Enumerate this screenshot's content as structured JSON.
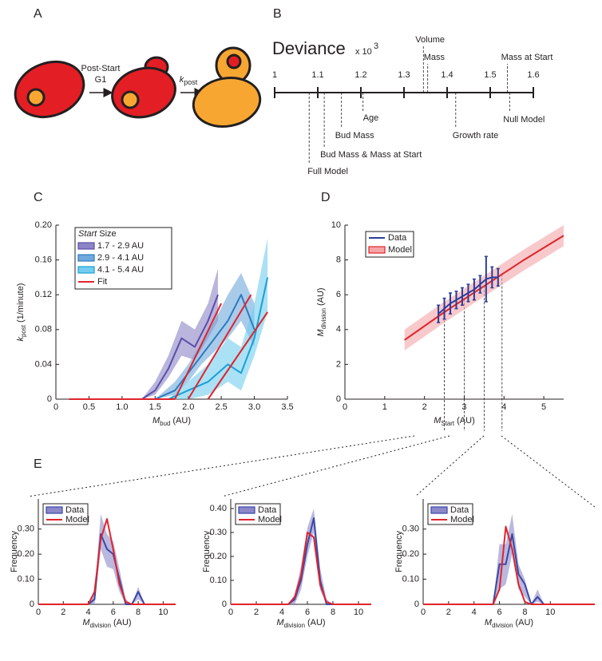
{
  "panels": [
    "A",
    "B",
    "C",
    "D",
    "E"
  ],
  "diagram": {
    "transition_1": [
      "Post-Start",
      "G1"
    ],
    "transition_2": {
      "symbol": "k",
      "subscript": "post"
    }
  },
  "chart_data": [
    {
      "type": "deviance",
      "title": "Deviance",
      "scale_label": "x 10",
      "scale_exponent": "3",
      "xlim": [
        1,
        1.6
      ],
      "xticks": [
        1,
        1.1,
        1.2,
        1.3,
        1.4,
        1.5,
        1.6
      ],
      "models": [
        {
          "name": "Full Model",
          "value": 1.08
        },
        {
          "name": "Bud Mass & Mass at Start",
          "value": 1.115
        },
        {
          "name": "Bud Mass",
          "value": 1.155
        },
        {
          "name": "Age",
          "value": 1.205
        },
        {
          "name": "Volume",
          "value": 1.345
        },
        {
          "name": "Mass",
          "value": 1.355
        },
        {
          "name": "Growth rate",
          "value": 1.42
        },
        {
          "name": "Null Model",
          "value": 1.545
        },
        {
          "name": "Mass at Start",
          "value": 1.54
        }
      ]
    },
    {
      "type": "line",
      "legend": "upper left",
      "xlabel": {
        "symbol": "M",
        "subscript": "bud",
        "unit": "(AU)"
      },
      "ylabel": {
        "symbol": "k",
        "subscript": "post",
        "unit": "(1/minute)"
      },
      "legend_title": {
        "italic": "Start",
        "text": "Size"
      },
      "xlim": [
        0,
        3.5
      ],
      "xticks": [
        0,
        0.5,
        {
          "value": 1,
          "label": "1.0"
        },
        1.5,
        {
          "value": 2,
          "label": "2.0"
        },
        2.5,
        {
          "value": 3,
          "label": "3.0"
        },
        3.5
      ],
      "ylim": [
        0,
        0.2
      ],
      "yticks": [
        0,
        0.04,
        0.08,
        0.12,
        0.16,
        {
          "value": 0.2,
          "label": "0.20"
        }
      ],
      "series": [
        {
          "name": "1.7 - 2.9 AU",
          "color": "#5a4fa8",
          "band_color": "#8b84c6",
          "x": [
            1.3,
            1.5,
            1.7,
            1.9,
            2.1,
            2.3,
            2.45
          ],
          "values": [
            0,
            0.01,
            0.035,
            0.07,
            0.06,
            0.09,
            0.12
          ],
          "lower": [
            0,
            0.005,
            0.025,
            0.05,
            0.045,
            0.07,
            0.09
          ],
          "upper": [
            0,
            0.02,
            0.05,
            0.09,
            0.08,
            0.11,
            0.15
          ]
        },
        {
          "name": "2.9 - 4.1 AU",
          "color": "#2b7bbf",
          "band_color": "#6fa8dc",
          "x": [
            1.5,
            1.8,
            2.0,
            2.2,
            2.4,
            2.6,
            2.8,
            3.0
          ],
          "values": [
            0,
            0.01,
            0.03,
            0.05,
            0.07,
            0.09,
            0.12,
            0.08
          ],
          "lower": [
            0,
            0.005,
            0.02,
            0.04,
            0.055,
            0.07,
            0.09,
            0.06
          ],
          "upper": [
            0,
            0.02,
            0.04,
            0.065,
            0.09,
            0.12,
            0.145,
            0.11
          ]
        },
        {
          "name": "4.1 - 5.4 AU",
          "color": "#1a9fd6",
          "band_color": "#72cdef",
          "x": [
            1.7,
            2.0,
            2.3,
            2.6,
            2.8,
            3.0,
            3.2
          ],
          "values": [
            0,
            0.01,
            0.02,
            0.04,
            0.03,
            0.07,
            0.14
          ],
          "lower": [
            0,
            0,
            0.005,
            0.02,
            0.01,
            0.05,
            0.1
          ],
          "upper": [
            0,
            0.02,
            0.04,
            0.07,
            0.06,
            0.11,
            0.185
          ]
        },
        {
          "name": "Fit",
          "color": "#e0242b",
          "x": [
            0.2,
            1.8,
            null,
            1.8,
            2.5,
            null,
            2.0,
            2.95,
            null,
            2.3,
            3.2
          ],
          "values": [
            0,
            0,
            null,
            0,
            0.11,
            null,
            0,
            0.12,
            null,
            0,
            0.1
          ]
        }
      ]
    },
    {
      "type": "line",
      "legend": "upper left",
      "xlabel": {
        "symbol": "M",
        "subscript": "Start",
        "unit": "(AU)"
      },
      "ylabel": {
        "symbol": "M",
        "subscript": "division",
        "unit": "(AU)"
      },
      "xlim": [
        0,
        5.5
      ],
      "xticks": [
        0,
        1,
        2,
        3,
        4,
        5
      ],
      "ylim": [
        0,
        10
      ],
      "yticks": [
        0,
        2,
        4,
        6,
        8,
        10
      ],
      "reference_x": [
        2.5,
        3,
        3.5,
        3.95
      ],
      "series": [
        {
          "name": "Model",
          "color": "#e0242b",
          "band_color": "#f4a5a8",
          "x": [
            1.5,
            2.5,
            3.5,
            4.5,
            5.5
          ],
          "values": [
            3.4,
            5.0,
            6.5,
            8.0,
            9.4
          ],
          "lower": [
            2.8,
            4.4,
            5.9,
            7.4,
            8.8
          ],
          "upper": [
            4.0,
            5.6,
            7.1,
            8.6,
            10.0
          ]
        },
        {
          "name": "Data",
          "color": "#2b3d9a",
          "x": [
            2.35,
            2.5,
            2.65,
            2.8,
            2.95,
            3.1,
            3.25,
            3.4,
            3.55,
            3.7,
            3.85
          ],
          "values": [
            4.9,
            5.2,
            5.5,
            5.7,
            5.9,
            6.1,
            6.3,
            6.6,
            6.9,
            7.0,
            7.0
          ],
          "errors": [
            0.5,
            0.6,
            0.6,
            0.5,
            0.5,
            0.5,
            0.6,
            0.5,
            1.3,
            0.6,
            0.5
          ]
        }
      ]
    },
    {
      "type": "line",
      "legend": "upper left",
      "xlabel": {
        "symbol": "M",
        "subscript": "division",
        "unit": "(AU)"
      },
      "ylabel": {
        "text": "Frequency"
      },
      "xlim": [
        0,
        11
      ],
      "xticks": [
        0,
        2,
        4,
        6,
        8,
        10
      ],
      "ylim": [
        0,
        0.42
      ],
      "yticks": [
        0,
        {
          "value": 0.1,
          "label": "0.10"
        },
        {
          "value": 0.2,
          "label": "0.20"
        },
        {
          "value": 0.3,
          "label": "0.30"
        }
      ],
      "x": [
        0,
        4,
        4.5,
        5,
        5.5,
        6,
        6.5,
        7,
        7.5,
        8,
        8.5,
        9,
        11
      ],
      "series": [
        {
          "name": "Data",
          "color": "#3a47a6",
          "band_color": "#8c88c9",
          "values": [
            0,
            0,
            0.02,
            0.28,
            0.22,
            0.2,
            0.1,
            0,
            0,
            0.05,
            0,
            0,
            0
          ],
          "lower": [
            0,
            0,
            0,
            0.22,
            0.15,
            0.14,
            0.05,
            0,
            0,
            0.02,
            0,
            0,
            0
          ],
          "upper": [
            0,
            0,
            0.05,
            0.36,
            0.28,
            0.25,
            0.14,
            0.02,
            0,
            0.07,
            0,
            0,
            0
          ]
        },
        {
          "name": "Model",
          "color": "#e0242b",
          "values": [
            0,
            0,
            0.05,
            0.26,
            0.34,
            0.22,
            0.08,
            0.01,
            0,
            0,
            0,
            0,
            0
          ]
        }
      ]
    },
    {
      "type": "line",
      "legend": "upper left",
      "xlabel": {
        "symbol": "M",
        "subscript": "division",
        "unit": "(AU)"
      },
      "ylabel": {
        "text": "Frequency"
      },
      "xlim": [
        0,
        11
      ],
      "xticks": [
        0,
        2,
        4,
        6,
        8,
        10
      ],
      "ylim": [
        0,
        0.44
      ],
      "yticks": [
        0,
        {
          "value": 0.1,
          "label": "0.10"
        },
        {
          "value": 0.2,
          "label": "0.20"
        },
        {
          "value": 0.3,
          "label": "0.30"
        },
        {
          "value": 0.4,
          "label": "0.40"
        }
      ],
      "x": [
        0,
        4,
        4.5,
        5,
        5.5,
        6,
        6.5,
        7,
        7.5,
        8,
        8.5,
        9,
        11
      ],
      "series": [
        {
          "name": "Data",
          "color": "#3a47a6",
          "band_color": "#8c88c9",
          "values": [
            0,
            0,
            0,
            0.02,
            0.1,
            0.25,
            0.36,
            0.1,
            0,
            0,
            0,
            0,
            0
          ],
          "lower": [
            0,
            0,
            0,
            0,
            0.06,
            0.2,
            0.3,
            0.06,
            0,
            0,
            0,
            0,
            0
          ],
          "upper": [
            0,
            0,
            0,
            0.04,
            0.16,
            0.32,
            0.4,
            0.15,
            0.02,
            0,
            0,
            0,
            0
          ]
        },
        {
          "name": "Model",
          "color": "#e0242b",
          "values": [
            0,
            0,
            0,
            0.03,
            0.12,
            0.3,
            0.28,
            0.08,
            0.01,
            0,
            0,
            0,
            0
          ]
        }
      ]
    },
    {
      "type": "line",
      "legend": "upper left",
      "xlabel": {
        "symbol": "M",
        "subscript": "division",
        "unit": "(AU)"
      },
      "ylabel": {
        "text": "Frequency"
      },
      "xlim": [
        0,
        13.5
      ],
      "xticks": [
        0,
        2,
        4,
        6,
        8,
        10
      ],
      "ylim": [
        0,
        0.42
      ],
      "yticks": [
        0,
        {
          "value": 0.1,
          "label": "0.10"
        },
        {
          "value": 0.2,
          "label": "0.20"
        },
        {
          "value": 0.3,
          "label": "0.30"
        }
      ],
      "x": [
        0,
        5,
        5.5,
        6,
        6.5,
        7,
        7.5,
        8,
        8.5,
        9,
        9.5,
        10,
        13.5
      ],
      "series": [
        {
          "name": "Data",
          "color": "#3a47a6",
          "band_color": "#8c88c9",
          "values": [
            0,
            0,
            0,
            0.16,
            0.16,
            0.28,
            0.12,
            0.08,
            0,
            0.03,
            0,
            0,
            0
          ],
          "lower": [
            0,
            0,
            0,
            0.06,
            0.08,
            0.2,
            0.06,
            0.03,
            0,
            0.01,
            0,
            0,
            0
          ],
          "upper": [
            0,
            0,
            0,
            0.24,
            0.24,
            0.36,
            0.16,
            0.1,
            0,
            0.06,
            0,
            0,
            0
          ]
        },
        {
          "name": "Model",
          "color": "#e0242b",
          "values": [
            0,
            0,
            0,
            0.06,
            0.31,
            0.22,
            0.08,
            0.01,
            0,
            0,
            0,
            0,
            0
          ]
        }
      ]
    }
  ]
}
